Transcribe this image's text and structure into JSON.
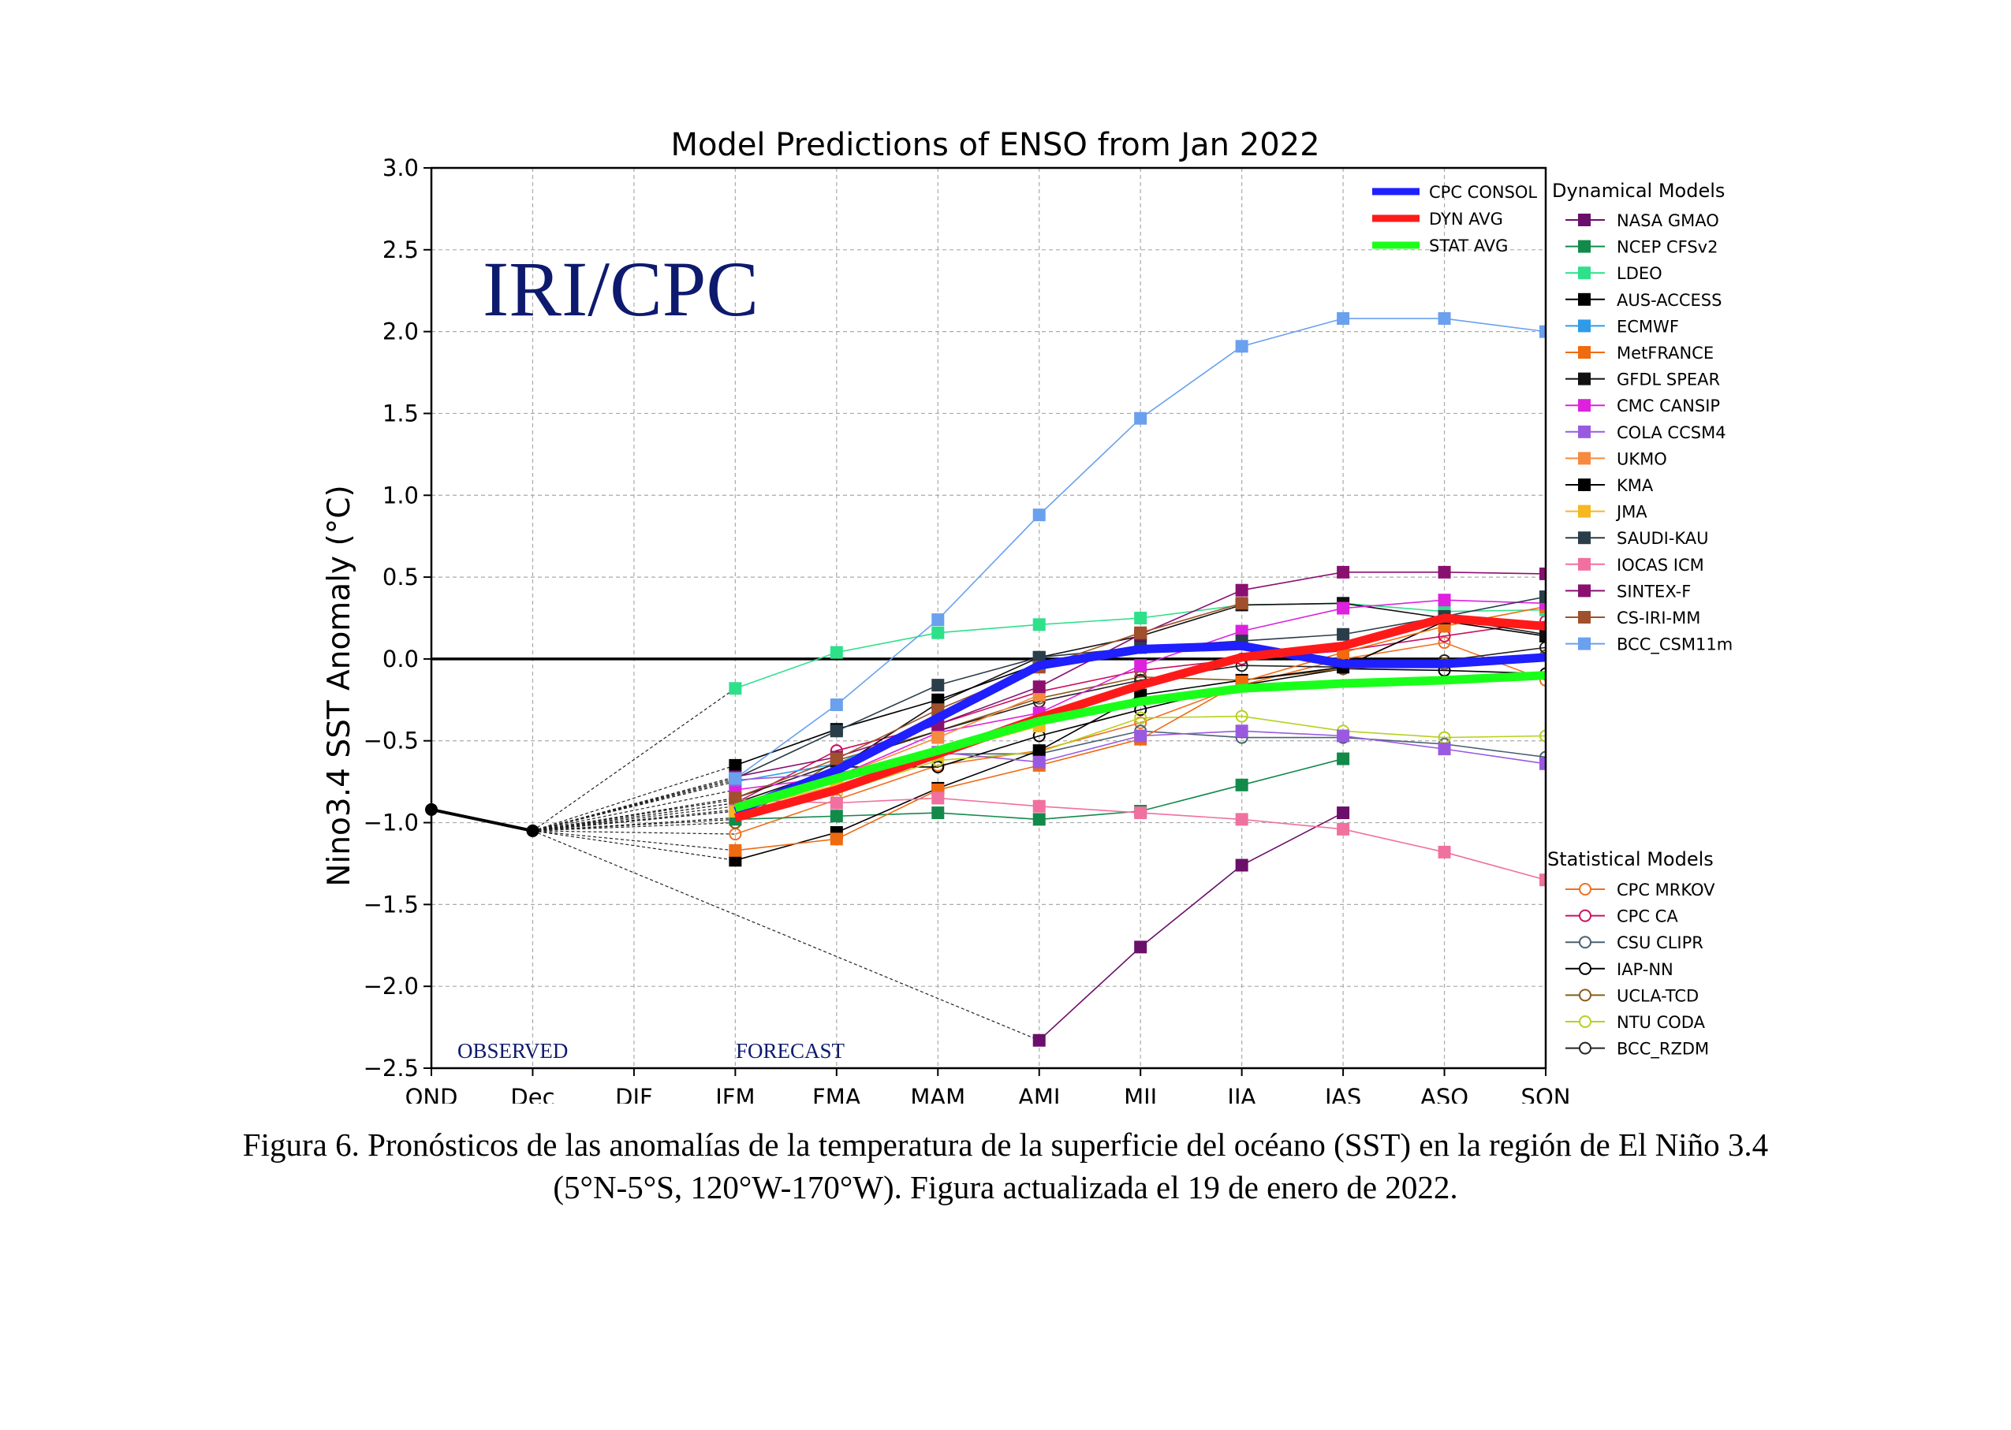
{
  "chart_data": {
    "type": "line",
    "title": "Model Predictions of ENSO from Jan 2022",
    "ylabel": "Nino3.4 SST Anomaly (°C)",
    "xlabel": "",
    "watermark": "IRI/CPC",
    "observed_label": "OBSERVED",
    "forecast_label": "FORECAST",
    "categories": [
      "OND",
      "Dec",
      "DJF",
      "JFM",
      "FMA",
      "MAM",
      "AMJ",
      "MJJ",
      "JJA",
      "JAS",
      "ASO",
      "SON"
    ],
    "yticks": [
      "3.0",
      "2.5",
      "2.0",
      "1.5",
      "1.0",
      "0.5",
      "0.0",
      "−0.5",
      "−1.0",
      "−1.5",
      "−2.0",
      "−2.5"
    ],
    "ylim": [
      -2.5,
      3.0
    ],
    "grid": true,
    "observed": {
      "name": "observed",
      "color": "#000000",
      "x": [
        "OND",
        "Dec"
      ],
      "values": [
        -0.92,
        -1.05
      ]
    },
    "averages": [
      {
        "name": "CPC CONSOL",
        "color": "#1f1fff",
        "values": [
          -0.93,
          -0.68,
          -0.36,
          -0.04,
          0.06,
          0.08,
          -0.03,
          -0.03,
          0.01
        ]
      },
      {
        "name": "DYN AVG",
        "color": "#ff1a1a",
        "values": [
          -0.97,
          -0.8,
          -0.58,
          -0.36,
          -0.16,
          0.01,
          0.08,
          0.25,
          0.2
        ]
      },
      {
        "name": "STAT AVG",
        "color": "#1aff1a",
        "values": [
          -0.91,
          -0.73,
          -0.56,
          -0.38,
          -0.26,
          -0.18,
          -0.15,
          -0.13,
          -0.1
        ]
      }
    ],
    "dynamical_title": "Dynamical Models",
    "dynamical": [
      {
        "name": "NASA GMAO",
        "color": "#6a0f6a",
        "values": [
          null,
          null,
          null,
          -2.33,
          -1.76,
          -1.26,
          -0.94,
          null,
          null
        ]
      },
      {
        "name": "NCEP CFSv2",
        "color": "#128a4a",
        "values": [
          -0.98,
          -0.96,
          -0.94,
          -0.98,
          -0.93,
          -0.77,
          -0.61,
          null,
          null
        ]
      },
      {
        "name": "LDEO",
        "color": "#2ee08a",
        "values": [
          -0.18,
          0.04,
          0.16,
          0.21,
          0.25,
          0.33,
          0.34,
          0.29,
          0.3
        ]
      },
      {
        "name": "AUS-ACCESS",
        "color": "#000000",
        "values": [
          -1.23,
          -1.06,
          -0.79,
          -0.56,
          -0.22,
          -0.13,
          -0.05,
          0.23,
          0.14
        ]
      },
      {
        "name": "ECMWF",
        "color": "#2e9be8",
        "values": [
          -0.75,
          -0.64,
          -0.37,
          -0.04,
          null,
          null,
          null,
          null,
          null
        ]
      },
      {
        "name": "MetFRANCE",
        "color": "#f06a10",
        "values": [
          -1.17,
          -1.1,
          -0.8,
          -0.65,
          -0.49,
          -0.14,
          0.04,
          0.2,
          0.32
        ]
      },
      {
        "name": "GFDL SPEAR",
        "color": "#111111",
        "values": [
          -0.88,
          -0.67,
          -0.27,
          0.01,
          0.14,
          0.33,
          0.34,
          0.25,
          0.15
        ]
      },
      {
        "name": "CMC CANSIP",
        "color": "#dd22dd",
        "values": [
          -0.8,
          -0.72,
          -0.45,
          -0.33,
          -0.04,
          0.17,
          0.31,
          0.36,
          0.34
        ]
      },
      {
        "name": "COLA CCSM4",
        "color": "#9a5ae0",
        "values": [
          -0.74,
          -0.7,
          -0.57,
          -0.63,
          -0.47,
          -0.44,
          -0.47,
          -0.55,
          -0.64
        ]
      },
      {
        "name": "UKMO",
        "color": "#f58a40",
        "values": [
          -0.92,
          -0.72,
          -0.48,
          -0.22,
          null,
          null,
          null,
          null,
          null
        ]
      },
      {
        "name": "KMA",
        "color": "#000000",
        "values": [
          -0.65,
          -0.43,
          -0.25,
          -0.03,
          null,
          null,
          null,
          null,
          null
        ]
      },
      {
        "name": "JMA",
        "color": "#f5b820",
        "values": [
          -0.93,
          -0.77,
          -0.58,
          -0.41,
          null,
          null,
          null,
          null,
          null
        ]
      },
      {
        "name": "SAUDI-KAU",
        "color": "#2a3d4a",
        "values": [
          -0.73,
          -0.44,
          -0.16,
          0.01,
          0.07,
          0.11,
          0.15,
          0.26,
          0.38
        ]
      },
      {
        "name": "IOCAS ICM",
        "color": "#f070a0",
        "values": [
          -0.86,
          -0.88,
          -0.85,
          -0.9,
          -0.94,
          -0.98,
          -1.04,
          -1.18,
          -1.35
        ]
      },
      {
        "name": "SINTEX-F",
        "color": "#8a1070",
        "values": [
          -0.72,
          -0.6,
          -0.4,
          -0.17,
          0.15,
          0.42,
          0.53,
          0.53,
          0.52
        ]
      },
      {
        "name": "CS-IRI-MM",
        "color": "#a0502a",
        "values": [
          -0.85,
          -0.61,
          -0.31,
          -0.05,
          0.16,
          0.34,
          null,
          null,
          null
        ]
      },
      {
        "name": "BCC_CSM11m",
        "color": "#6aa0ee",
        "values": [
          -0.73,
          -0.28,
          0.24,
          0.88,
          1.47,
          1.91,
          2.08,
          2.08,
          2.0
        ]
      }
    ],
    "statistical_title": "Statistical Models",
    "statistical": [
      {
        "name": "CPC MRKOV",
        "color": "#f07020",
        "values": [
          -1.07,
          -0.86,
          -0.65,
          -0.56,
          -0.39,
          -0.16,
          0.0,
          0.1,
          -0.13
        ]
      },
      {
        "name": "CPC CA",
        "color": "#cc1060",
        "values": [
          -0.88,
          -0.56,
          -0.4,
          -0.2,
          -0.07,
          0.0,
          0.05,
          0.14,
          0.23
        ]
      },
      {
        "name": "CSU CLIPR",
        "color": "#4a6070",
        "values": [
          -0.9,
          -0.75,
          -0.58,
          -0.58,
          -0.44,
          -0.48,
          -0.48,
          -0.52,
          -0.6
        ]
      },
      {
        "name": "IAP-NN",
        "color": "#000000",
        "values": [
          -0.93,
          -0.66,
          -0.66,
          -0.47,
          -0.31,
          -0.16,
          -0.06,
          -0.07,
          -0.09
        ]
      },
      {
        "name": "UCLA-TCD",
        "color": "#8a5a1a",
        "values": [
          -1.0,
          -0.62,
          -0.44,
          -0.24,
          -0.11,
          -0.13,
          -0.06,
          -0.03,
          0.02
        ]
      },
      {
        "name": "NTU CODA",
        "color": "#b8d020",
        "values": [
          -0.97,
          -0.82,
          -0.62,
          -0.57,
          -0.36,
          -0.35,
          -0.44,
          -0.48,
          -0.47
        ]
      },
      {
        "name": "BCC_RZDM",
        "color": "#222222",
        "values": [
          -0.85,
          -0.64,
          -0.44,
          -0.26,
          -0.13,
          -0.04,
          -0.05,
          -0.01,
          0.07
        ]
      }
    ]
  },
  "caption": {
    "line1": "Figura 6. Pronósticos de las anomalías de la temperatura de la superficie del océano (SST) en la región de El Niño 3.4",
    "line2": "(5°N-5°S, 120°W-170°W). Figura actualizada el 19 de enero de 2022."
  }
}
